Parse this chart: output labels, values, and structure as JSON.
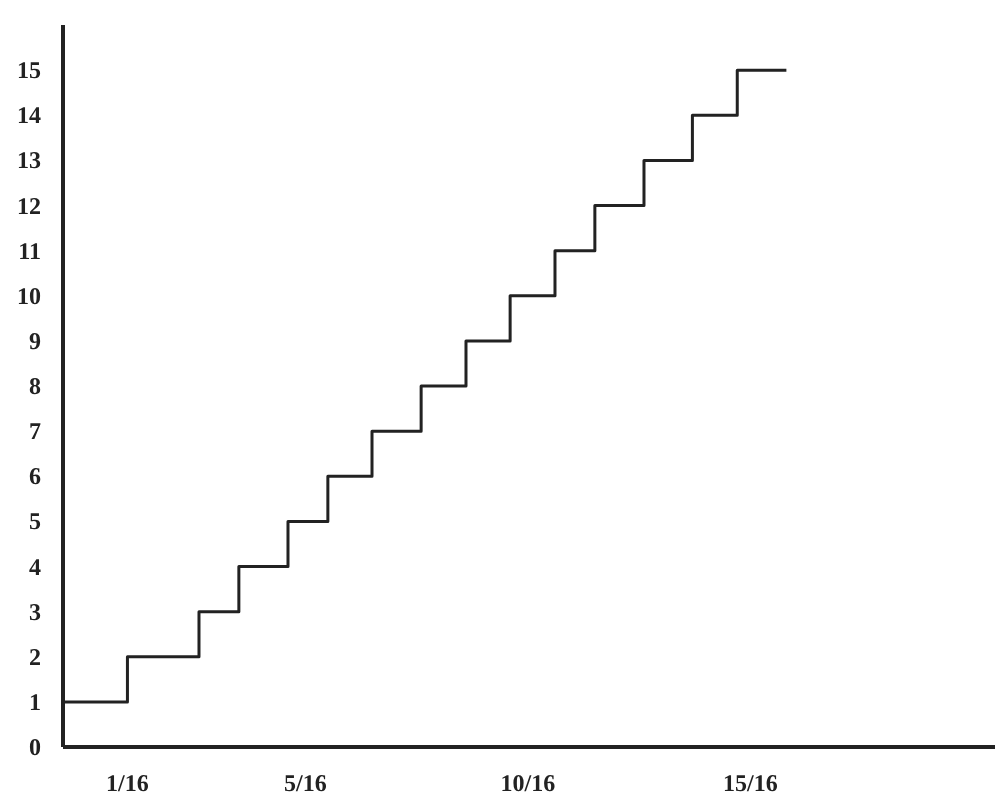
{
  "chart_data": {
    "type": "step",
    "x": [
      -0.028,
      0.0625,
      0.163,
      0.219,
      0.288,
      0.344,
      0.406,
      0.475,
      0.538,
      0.6,
      0.663,
      0.719,
      0.788,
      0.856,
      0.919,
      0.988
    ],
    "series": [
      {
        "color": "#222222",
        "values": [
          1,
          2,
          3,
          4,
          5,
          6,
          7,
          8,
          9,
          10,
          11,
          12,
          13,
          14,
          15,
          15
        ]
      }
    ],
    "xlim": [
      -0.028,
      1.281
    ],
    "ylim": [
      0,
      16
    ],
    "xticks": [
      {
        "value": 0.0625,
        "label": "1/16"
      },
      {
        "value": 0.3125,
        "label": "5/16"
      },
      {
        "value": 0.625,
        "label": "10/16"
      },
      {
        "value": 0.9375,
        "label": "15/16"
      }
    ],
    "yticks": [
      0,
      1,
      2,
      3,
      4,
      5,
      6,
      7,
      8,
      9,
      10,
      11,
      12,
      13,
      14,
      15
    ],
    "grid": false
  }
}
